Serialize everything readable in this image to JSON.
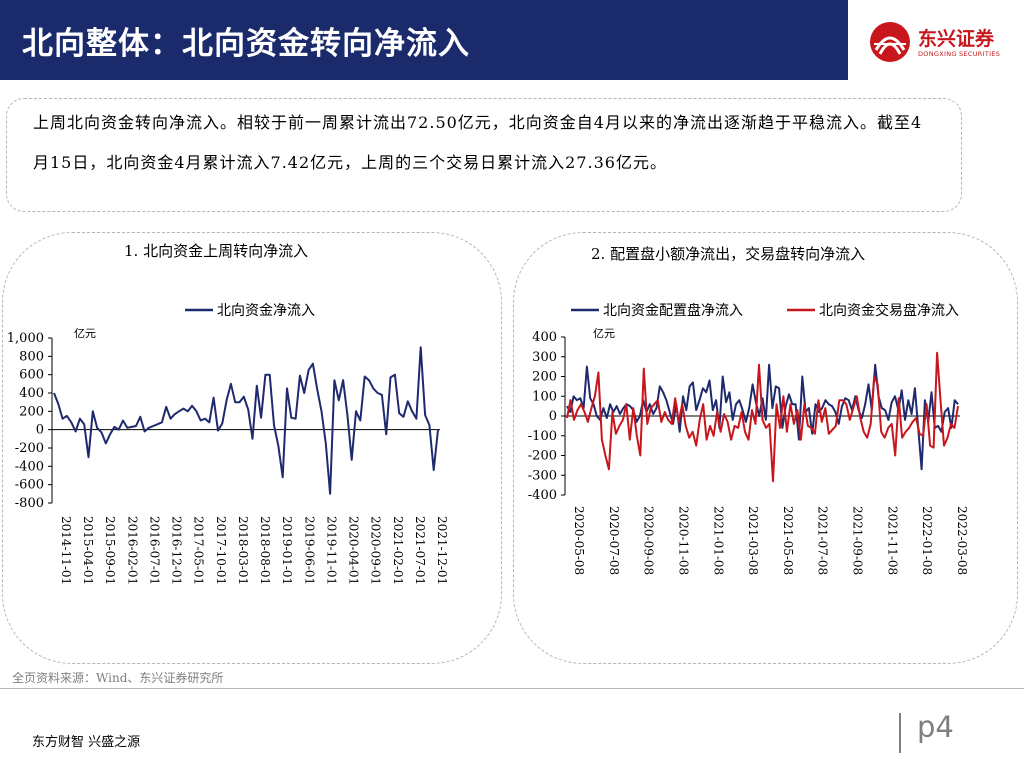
{
  "header": {
    "title": "北向整体：北向资金转向净流入"
  },
  "logo": {
    "name": "东兴证券",
    "sub": "DONGXING SECURITIES",
    "color": "#c8161d"
  },
  "summary": {
    "text": "上周北向资金转向净流入。相较于前一周累计流出72.50亿元，北向资金自4月以来的净流出逐渐趋于平稳流入。截至4月15日，北向资金4月累计流入7.42亿元，上周的三个交易日累计流入27.36亿元。"
  },
  "panels": {
    "left_title": "1. 北向资金上周转向净流入",
    "right_title": "2. 配置盘小额净流出，交易盘转向净流入"
  },
  "source": "全页资料来源：Wind、东兴证券研究所",
  "footer": {
    "slogan": "东方财智 兴盛之源",
    "page": "p4"
  },
  "chart_data": [
    {
      "type": "line",
      "unit": "亿元",
      "ylim": [
        -800,
        1000
      ],
      "yticks": [
        "1,000",
        "800",
        "600",
        "400",
        "200",
        "0",
        "-200",
        "-400",
        "-600",
        "-800"
      ],
      "xticks": [
        "2014-11-01",
        "2015-04-01",
        "2015-09-01",
        "2016-02-01",
        "2016-07-01",
        "2016-12-01",
        "2017-05-01",
        "2017-10-01",
        "2018-03-01",
        "2018-08-01",
        "2019-01-01",
        "2019-06-01",
        "2019-11-01",
        "2020-04-01",
        "2020-09-01",
        "2021-02-01",
        "2021-07-01",
        "2021-12-01"
      ],
      "legend_position": "top",
      "series": [
        {
          "name": "北向资金净流入",
          "color": "#1f2a6e",
          "values": [
            400,
            280,
            120,
            150,
            80,
            -20,
            120,
            60,
            -300,
            200,
            20,
            -30,
            -150,
            -50,
            30,
            0,
            100,
            20,
            30,
            40,
            140,
            -20,
            20,
            40,
            60,
            80,
            250,
            120,
            170,
            200,
            230,
            200,
            260,
            200,
            100,
            120,
            80,
            350,
            -10,
            70,
            320,
            500,
            300,
            300,
            360,
            220,
            -100,
            480,
            130,
            600,
            600,
            50,
            -180,
            -520,
            450,
            130,
            120,
            590,
            400,
            650,
            720,
            440,
            200,
            -150,
            -700,
            540,
            320,
            540,
            160,
            -330,
            200,
            100,
            580,
            540,
            450,
            400,
            380,
            -50,
            570,
            600,
            180,
            140,
            310,
            200,
            120,
            900,
            160,
            50,
            -440,
            0
          ],
          "markers": false
        }
      ]
    },
    {
      "type": "line",
      "unit": "亿元",
      "ylim": [
        -400,
        400
      ],
      "yticks": [
        "400",
        "300",
        "200",
        "100",
        "0",
        "-100",
        "-200",
        "-300",
        "-400"
      ],
      "xticks": [
        "2020-05-08",
        "2020-07-08",
        "2020-09-08",
        "2020-11-08",
        "2021-01-08",
        "2021-03-08",
        "2021-05-08",
        "2021-07-08",
        "2021-09-08",
        "2021-11-08",
        "2022-01-08",
        "2022-03-08"
      ],
      "legend_position": "top",
      "series": [
        {
          "name": "北向资金配置盘净流入",
          "color": "#1f2a6e",
          "values": [
            50,
            20,
            100,
            80,
            90,
            40,
            250,
            90,
            60,
            0,
            -20,
            40,
            -10,
            60,
            20,
            50,
            10,
            40,
            60,
            50,
            30,
            -30,
            0,
            80,
            20,
            60,
            10,
            40,
            150,
            120,
            80,
            20,
            -40,
            60,
            -80,
            100,
            30,
            150,
            170,
            30,
            80,
            140,
            120,
            180,
            30,
            80,
            -60,
            200,
            70,
            120,
            -20,
            60,
            80,
            30,
            -30,
            40,
            160,
            70,
            0,
            90,
            -20,
            260,
            40,
            150,
            140,
            -60,
            50,
            110,
            60,
            60,
            -120,
            200,
            20,
            40,
            -90,
            60,
            20,
            40,
            80,
            60,
            50,
            20,
            -40,
            50,
            90,
            80,
            30,
            100,
            30,
            -10,
            60,
            160,
            30,
            260,
            100,
            40,
            30,
            -20,
            70,
            100,
            30,
            130,
            -20,
            80,
            10,
            140,
            -60,
            -270,
            80,
            -30,
            120,
            -60,
            -50,
            -80,
            20,
            40,
            -60,
            80,
            60
          ]
        },
        {
          "name": "北向资金交易盘净流入",
          "color": "#c8161d",
          "values": [
            -10,
            80,
            -20,
            30,
            60,
            20,
            -30,
            40,
            100,
            220,
            -120,
            -200,
            -270,
            20,
            -90,
            -50,
            -20,
            60,
            -120,
            40,
            -100,
            -200,
            240,
            -40,
            40,
            60,
            80,
            -30,
            20,
            -20,
            -40,
            90,
            -30,
            60,
            -50,
            -110,
            -80,
            -150,
            -20,
            60,
            -120,
            -50,
            -100,
            20,
            -80,
            10,
            -30,
            -120,
            -50,
            -60,
            20,
            -80,
            -120,
            30,
            -40,
            260,
            -20,
            -60,
            -40,
            -330,
            60,
            -60,
            100,
            -80,
            60,
            -40,
            30,
            -120,
            60,
            -50,
            -60,
            -90,
            80,
            -30,
            40,
            -90,
            -70,
            -50,
            80,
            80,
            60,
            -20,
            40,
            100,
            -10,
            -80,
            -110,
            -40,
            200,
            160,
            -80,
            -110,
            -60,
            -40,
            -200,
            90,
            -110,
            -80,
            -60,
            -30,
            -10,
            -90,
            -100,
            60,
            -150,
            -160,
            320,
            80,
            -150,
            -110,
            -40,
            -60,
            50
          ]
        }
      ]
    }
  ]
}
